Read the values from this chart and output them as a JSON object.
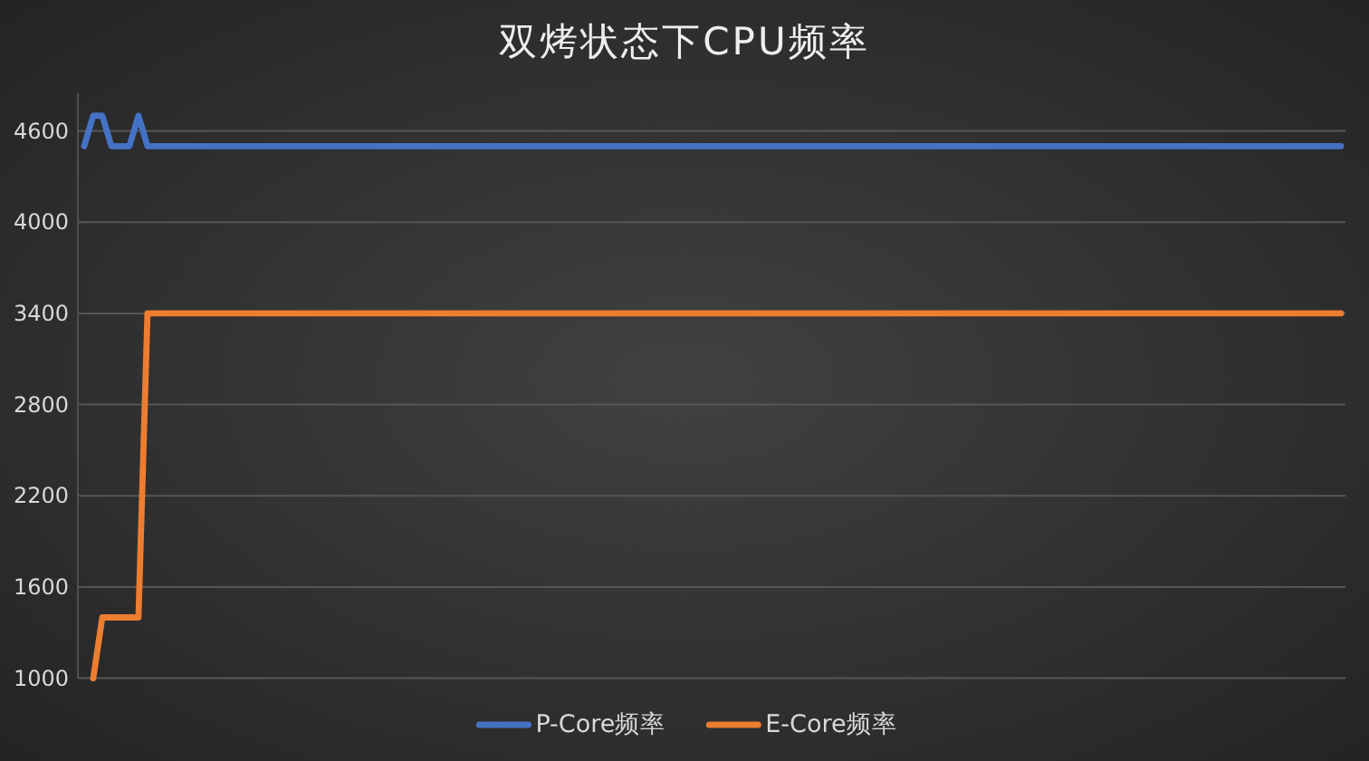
{
  "chart_data": {
    "type": "line",
    "title": "双烤状态下CPU频率",
    "categories": [
      null,
      null,
      null,
      null,
      null,
      null,
      null,
      null,
      null,
      null,
      null,
      null,
      null,
      null,
      null,
      null,
      null,
      null,
      null,
      null,
      null,
      null,
      null,
      null,
      null,
      null,
      null,
      null,
      null,
      null,
      null,
      null,
      null,
      null,
      null,
      null,
      null,
      null,
      null,
      null,
      null,
      null,
      null,
      null,
      null,
      null,
      null,
      null,
      null,
      null,
      null,
      null,
      null,
      null,
      null,
      null,
      null,
      null,
      null,
      null,
      null,
      null,
      null,
      null,
      null,
      null,
      null,
      null,
      null,
      null,
      null,
      null,
      null,
      null,
      null,
      null,
      null,
      null,
      null,
      null,
      null,
      null,
      null,
      null,
      null,
      null,
      null,
      null,
      null,
      null,
      null,
      null,
      null,
      null,
      null,
      null,
      null,
      null,
      null,
      null,
      null,
      null,
      null,
      null,
      null,
      null,
      null,
      null,
      null,
      null,
      null,
      null,
      null,
      null,
      null,
      null,
      null,
      null,
      null,
      null,
      null,
      null,
      null,
      null,
      null,
      null,
      null,
      null,
      null,
      null,
      null,
      null,
      null,
      null,
      null,
      null,
      null,
      null,
      null,
      null
    ],
    "series": [
      {
        "name": "P-Core频率",
        "color": "#4472c4",
        "values": [
          4500,
          4700,
          4700,
          4500,
          4500,
          4500,
          4700,
          4500,
          4500,
          4500,
          4500,
          4500,
          4500,
          4500,
          4500,
          4500,
          4500,
          4500,
          4500,
          4500,
          4500,
          4500,
          4500,
          4500,
          4500,
          4500,
          4500,
          4500,
          4500,
          4500,
          4500,
          4500,
          4500,
          4500,
          4500,
          4500,
          4500,
          4500,
          4500,
          4500,
          4500,
          4500,
          4500,
          4500,
          4500,
          4500,
          4500,
          4500,
          4500,
          4500,
          4500,
          4500,
          4500,
          4500,
          4500,
          4500,
          4500,
          4500,
          4500,
          4500,
          4500,
          4500,
          4500,
          4500,
          4500,
          4500,
          4500,
          4500,
          4500,
          4500,
          4500,
          4500,
          4500,
          4500,
          4500,
          4500,
          4500,
          4500,
          4500,
          4500,
          4500,
          4500,
          4500,
          4500,
          4500,
          4500,
          4500,
          4500,
          4500,
          4500,
          4500,
          4500,
          4500,
          4500,
          4500,
          4500,
          4500,
          4500,
          4500,
          4500,
          4500,
          4500,
          4500,
          4500,
          4500,
          4500,
          4500,
          4500,
          4500,
          4500,
          4500,
          4500,
          4500,
          4500,
          4500,
          4500,
          4500,
          4500,
          4500,
          4500,
          4500,
          4500,
          4500,
          4500,
          4500,
          4500,
          4500,
          4500,
          4500,
          4500,
          4500,
          4500,
          4500,
          4500,
          4500,
          4500,
          4500,
          4500,
          4500,
          4500
        ]
      },
      {
        "name": "E-Core频率",
        "color": "#ed7d31",
        "values": [
          null,
          1000,
          1400,
          1400,
          1400,
          1400,
          1400,
          3400,
          3400,
          3400,
          3400,
          3400,
          3400,
          3400,
          3400,
          3400,
          3400,
          3400,
          3400,
          3400,
          3400,
          3400,
          3400,
          3400,
          3400,
          3400,
          3400,
          3400,
          3400,
          3400,
          3400,
          3400,
          3400,
          3400,
          3400,
          3400,
          3400,
          3400,
          3400,
          3400,
          3400,
          3400,
          3400,
          3400,
          3400,
          3400,
          3400,
          3400,
          3400,
          3400,
          3400,
          3400,
          3400,
          3400,
          3400,
          3400,
          3400,
          3400,
          3400,
          3400,
          3400,
          3400,
          3400,
          3400,
          3400,
          3400,
          3400,
          3400,
          3400,
          3400,
          3400,
          3400,
          3400,
          3400,
          3400,
          3400,
          3400,
          3400,
          3400,
          3400,
          3400,
          3400,
          3400,
          3400,
          3400,
          3400,
          3400,
          3400,
          3400,
          3400,
          3400,
          3400,
          3400,
          3400,
          3400,
          3400,
          3400,
          3400,
          3400,
          3400,
          3400,
          3400,
          3400,
          3400,
          3400,
          3400,
          3400,
          3400,
          3400,
          3400,
          3400,
          3400,
          3400,
          3400,
          3400,
          3400,
          3400,
          3400,
          3400,
          3400,
          3400,
          3400,
          3400,
          3400,
          3400,
          3400,
          3400,
          3400,
          3400,
          3400,
          3400,
          3400,
          3400,
          3400,
          3400,
          3400,
          3400,
          3400,
          3400,
          3400
        ]
      }
    ],
    "ylim": [
      1000,
      4850
    ],
    "yticks": [
      1000,
      1600,
      2200,
      2800,
      3400,
      4000,
      4600
    ],
    "grid": "y",
    "legend": "bottom",
    "marker": "none",
    "line_style": "solid"
  }
}
